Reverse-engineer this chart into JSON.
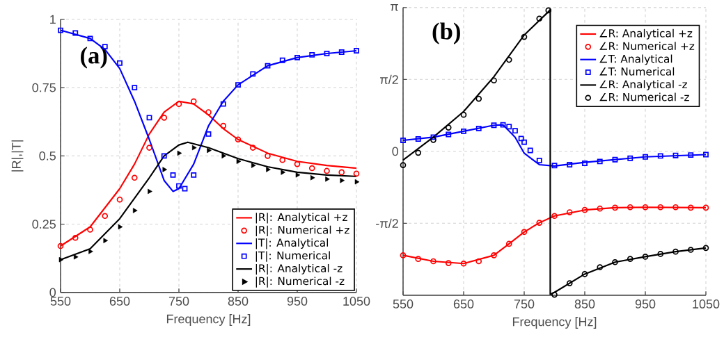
{
  "chart_data": [
    {
      "type": "line",
      "xlabel": "Frequency [Hz]",
      "ylabel": "|R|,|T|",
      "xlim": [
        550,
        1050
      ],
      "ylim": [
        0,
        1
      ],
      "xticks": [
        550,
        650,
        750,
        850,
        950,
        1050
      ],
      "yticks": [
        0,
        0.25,
        0.5,
        0.75,
        1
      ],
      "grid": true,
      "legend": "bottom right",
      "annotations": [
        "(a)"
      ],
      "series": [
        {
          "name": "|R|: Analytical +z",
          "color": "#ff0000",
          "type": "line",
          "marker": "none",
          "line_style": "solid",
          "x": [
            550,
            600,
            650,
            675,
            700,
            725,
            750,
            775,
            800,
            825,
            850,
            900,
            950,
            1000,
            1050
          ],
          "values": [
            0.17,
            0.24,
            0.38,
            0.47,
            0.58,
            0.66,
            0.7,
            0.69,
            0.65,
            0.6,
            0.56,
            0.51,
            0.48,
            0.465,
            0.455
          ]
        },
        {
          "name": "|R|: Numerical +z",
          "color": "#ff0000",
          "type": "scatter",
          "marker": "circle",
          "x": [
            550,
            575,
            600,
            625,
            650,
            675,
            700,
            725,
            750,
            775,
            800,
            825,
            850,
            875,
            900,
            925,
            950,
            975,
            1000,
            1025,
            1050
          ],
          "values": [
            0.17,
            0.2,
            0.23,
            0.28,
            0.34,
            0.42,
            0.53,
            0.64,
            0.69,
            0.7,
            0.66,
            0.61,
            0.56,
            0.53,
            0.5,
            0.485,
            0.47,
            0.455,
            0.445,
            0.44,
            0.435
          ]
        },
        {
          "name": "|T|: Analytical",
          "color": "#0000ff",
          "type": "line",
          "marker": "none",
          "line_style": "solid",
          "x": [
            550,
            600,
            625,
            650,
            675,
            700,
            725,
            740,
            750,
            775,
            800,
            825,
            850,
            900,
            950,
            1000,
            1050
          ],
          "values": [
            0.96,
            0.93,
            0.89,
            0.82,
            0.7,
            0.56,
            0.41,
            0.37,
            0.38,
            0.47,
            0.61,
            0.7,
            0.76,
            0.83,
            0.86,
            0.875,
            0.885
          ]
        },
        {
          "name": "|T|: Numerical",
          "color": "#0000ff",
          "type": "scatter",
          "marker": "square",
          "x": [
            550,
            575,
            600,
            625,
            650,
            675,
            700,
            725,
            740,
            750,
            760,
            775,
            800,
            825,
            850,
            875,
            900,
            925,
            950,
            975,
            1000,
            1025,
            1050
          ],
          "values": [
            0.96,
            0.95,
            0.93,
            0.9,
            0.84,
            0.75,
            0.64,
            0.5,
            0.43,
            0.39,
            0.38,
            0.43,
            0.58,
            0.69,
            0.76,
            0.8,
            0.83,
            0.85,
            0.86,
            0.87,
            0.875,
            0.88,
            0.885
          ]
        },
        {
          "name": "|R|: Analytical -z",
          "color": "#000000",
          "type": "line",
          "marker": "none",
          "line_style": "solid",
          "x": [
            550,
            600,
            650,
            700,
            725,
            750,
            765,
            800,
            850,
            900,
            950,
            1000,
            1050
          ],
          "values": [
            0.12,
            0.16,
            0.27,
            0.42,
            0.5,
            0.54,
            0.55,
            0.53,
            0.49,
            0.46,
            0.44,
            0.43,
            0.425
          ]
        },
        {
          "name": "|R|: Numerical -z",
          "color": "#000000",
          "type": "scatter",
          "marker": "triangle",
          "x": [
            550,
            575,
            600,
            625,
            650,
            675,
            700,
            725,
            750,
            775,
            800,
            825,
            850,
            875,
            900,
            925,
            950,
            975,
            1000,
            1025,
            1050
          ],
          "values": [
            0.12,
            0.13,
            0.15,
            0.19,
            0.24,
            0.3,
            0.37,
            0.45,
            0.51,
            0.53,
            0.52,
            0.5,
            0.48,
            0.465,
            0.45,
            0.44,
            0.43,
            0.42,
            0.415,
            0.41,
            0.405
          ]
        }
      ]
    },
    {
      "type": "line",
      "xlabel": "Frequency [Hz]",
      "xlim": [
        550,
        1050
      ],
      "ylim": [
        -3.1416,
        3.1416
      ],
      "xticks": [
        550,
        650,
        750,
        850,
        950,
        1050
      ],
      "yticks": [
        {
          "value": -1.5708,
          "label": "-π/2"
        },
        {
          "value": 0,
          "label": "0"
        },
        {
          "value": 1.5708,
          "label": "π/2"
        },
        {
          "value": 3.1416,
          "label": "π"
        }
      ],
      "grid": true,
      "legend": "top right",
      "annotations": [
        "(b)"
      ],
      "series": [
        {
          "name": "∠R: Analytical +z",
          "color": "#ff0000",
          "type": "line",
          "marker": "none",
          "line_style": "solid",
          "x": [
            550,
            600,
            650,
            700,
            725,
            750,
            775,
            800,
            850,
            900,
            950,
            1050
          ],
          "values": [
            -2.27,
            -2.4,
            -2.45,
            -2.27,
            -2.02,
            -1.76,
            -1.56,
            -1.41,
            -1.28,
            -1.23,
            -1.22,
            -1.23
          ]
        },
        {
          "name": "∠R: Numerical +z",
          "color": "#ff0000",
          "type": "scatter",
          "marker": "circle",
          "x": [
            550,
            575,
            600,
            625,
            650,
            675,
            700,
            725,
            750,
            775,
            800,
            825,
            850,
            875,
            900,
            925,
            950,
            975,
            1000,
            1025,
            1050
          ],
          "values": [
            -2.27,
            -2.35,
            -2.4,
            -2.44,
            -2.45,
            -2.4,
            -2.27,
            -2.02,
            -1.76,
            -1.56,
            -1.41,
            -1.33,
            -1.28,
            -1.25,
            -1.23,
            -1.22,
            -1.22,
            -1.22,
            -1.22,
            -1.23,
            -1.23
          ]
        },
        {
          "name": "∠T: Analytical",
          "color": "#0000ff",
          "type": "line",
          "marker": "none",
          "line_style": "solid",
          "x": [
            550,
            600,
            650,
            700,
            715,
            735,
            750,
            775,
            800,
            850,
            950,
            1050
          ],
          "values": [
            0.24,
            0.31,
            0.44,
            0.57,
            0.58,
            0.31,
            -0.04,
            -0.29,
            -0.32,
            -0.24,
            -0.12,
            -0.07
          ]
        },
        {
          "name": "∠T: Numerical",
          "color": "#0000ff",
          "type": "scatter",
          "marker": "square",
          "x": [
            550,
            575,
            600,
            625,
            650,
            675,
            700,
            715,
            725,
            735,
            745,
            750,
            760,
            775,
            800,
            825,
            850,
            875,
            900,
            925,
            950,
            975,
            1000,
            1025,
            1050
          ],
          "values": [
            0.24,
            0.27,
            0.31,
            0.37,
            0.44,
            0.5,
            0.57,
            0.58,
            0.54,
            0.45,
            0.28,
            0.2,
            0.02,
            -0.2,
            -0.31,
            -0.29,
            -0.26,
            -0.22,
            -0.18,
            -0.15,
            -0.12,
            -0.1,
            -0.09,
            -0.08,
            -0.07
          ]
        },
        {
          "name": "∠R: Analytical -z",
          "color": "#000000",
          "type": "line",
          "marker": "none",
          "line_style": "solid",
          "x": [
            550,
            600,
            650,
            700,
            750,
            790,
            793,
            793,
            800,
            850,
            900,
            950,
            1000,
            1050
          ],
          "values": [
            -0.19,
            0.31,
            0.87,
            1.63,
            2.54,
            3.05,
            3.1,
            -3.12,
            -3.08,
            -2.68,
            -2.42,
            -2.3,
            -2.19,
            -2.11
          ]
        },
        {
          "name": "∠R: Numerical -z",
          "color": "#000000",
          "type": "scatter",
          "marker": "circle",
          "x": [
            550,
            575,
            600,
            625,
            650,
            675,
            700,
            725,
            750,
            775,
            790,
            800,
            825,
            850,
            875,
            900,
            925,
            950,
            975,
            1000,
            1025,
            1050
          ],
          "values": [
            -0.3,
            -0.03,
            0.25,
            0.52,
            0.8,
            1.15,
            1.55,
            2.0,
            2.5,
            2.9,
            3.08,
            -3.13,
            -2.88,
            -2.68,
            -2.53,
            -2.42,
            -2.35,
            -2.3,
            -2.24,
            -2.19,
            -2.15,
            -2.11
          ]
        }
      ]
    }
  ]
}
